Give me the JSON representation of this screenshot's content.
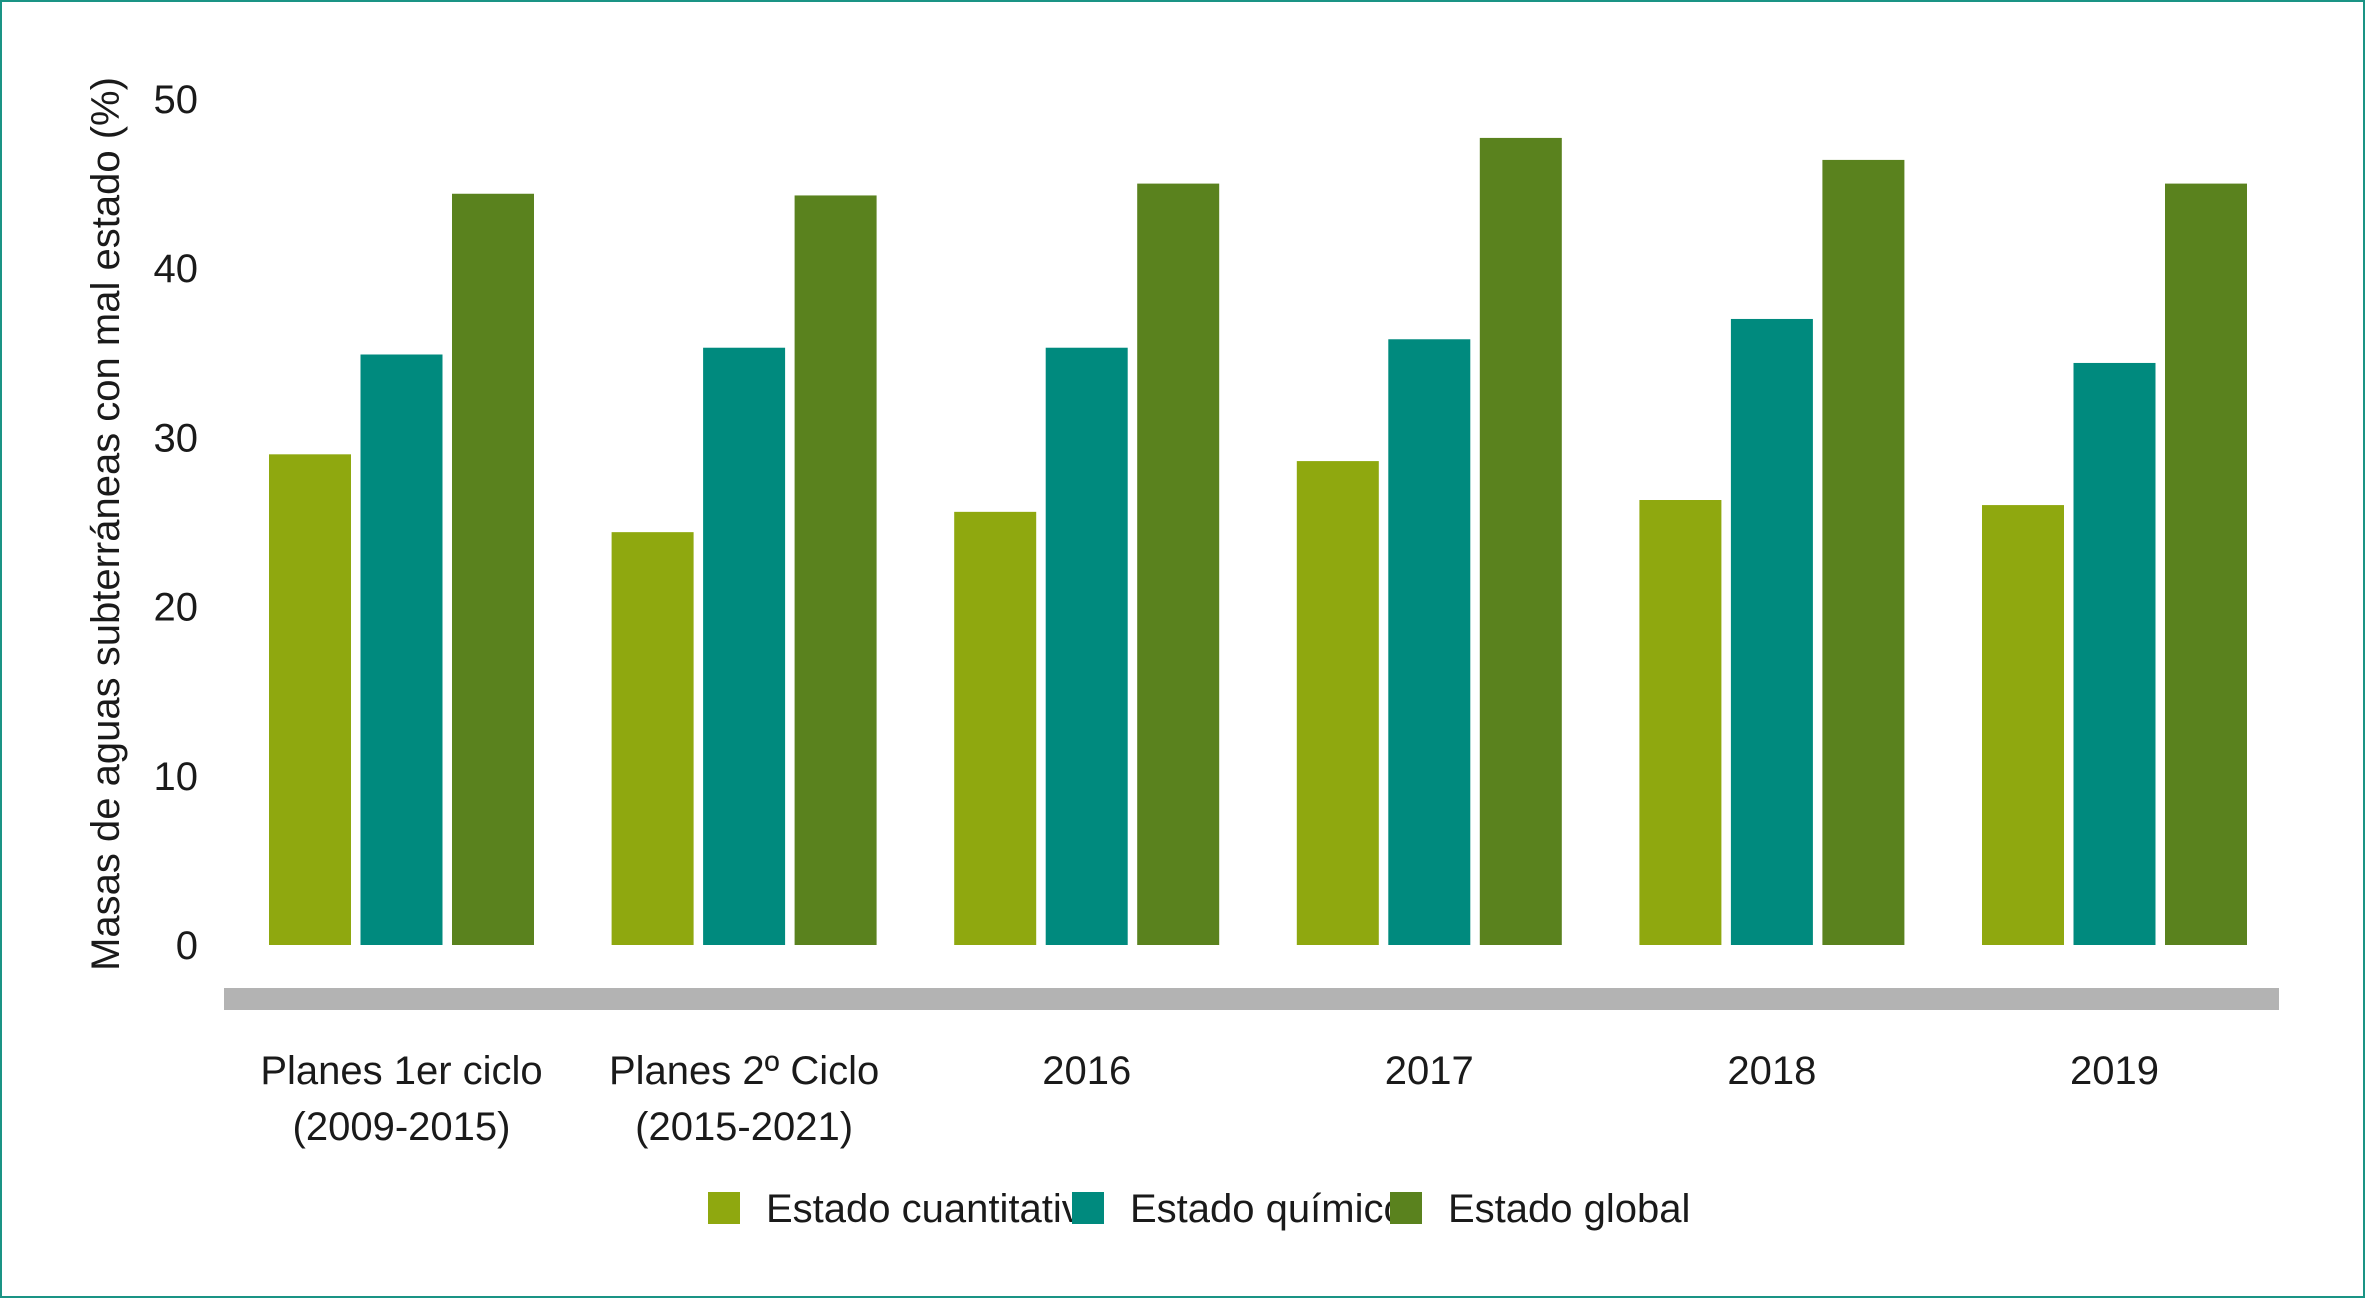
{
  "chart_data": {
    "type": "bar",
    "ylabel": "Masas de aguas subterráneas con mal estado (%)",
    "xlabel": "",
    "ylim": [
      0,
      50
    ],
    "yticks": [
      "0",
      "10",
      "20",
      "30",
      "40",
      "50"
    ],
    "categories": [
      [
        "Planes 1er ciclo",
        "(2009-2015)"
      ],
      [
        "Planes 2º Ciclo",
        "(2015-2021)"
      ],
      [
        "2016"
      ],
      [
        "2017"
      ],
      [
        "2018"
      ],
      [
        "2019"
      ]
    ],
    "series": [
      {
        "name": "Estado cuantitativo",
        "color": "#8fa80f",
        "values": [
          29.0,
          24.4,
          25.6,
          28.6,
          26.3,
          26.0
        ]
      },
      {
        "name": "Estado químico",
        "color": "#008a7e",
        "values": [
          34.9,
          35.3,
          35.3,
          35.8,
          37.0,
          34.4
        ]
      },
      {
        "name": "Estado global",
        "color": "#5a821e",
        "values": [
          44.4,
          44.3,
          45.0,
          47.7,
          46.4,
          45.0
        ]
      }
    ],
    "legend_position": "bottom",
    "grid": false,
    "axis_color": "#b3b3b3"
  }
}
